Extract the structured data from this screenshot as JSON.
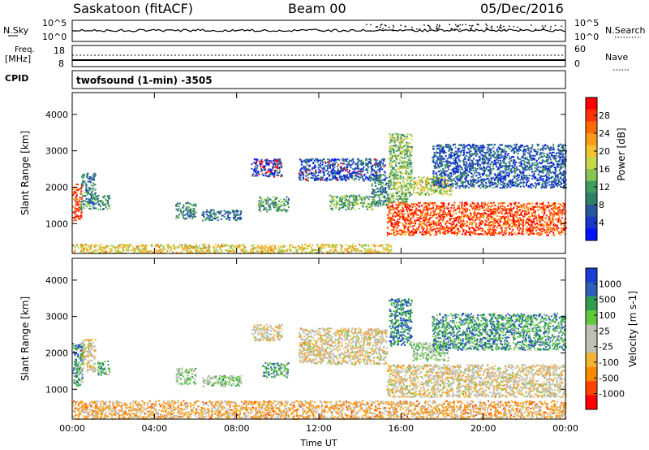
{
  "header": {
    "station": "Saskatoon (fitACF)",
    "beam": "Beam 00",
    "date": "05/Dec/2016"
  },
  "top_panels": {
    "nsky_label": "N.Sky",
    "nsky_ticks": [
      "10^5",
      "10^0"
    ],
    "nsearch_label": "N.Search",
    "nsearch_ticks": [
      "10^5",
      "10^0"
    ],
    "freq_label": "Freq.",
    "freq_unit": "[MHz]",
    "freq_ticks": [
      "18",
      "8"
    ],
    "nave_label": "Nave",
    "nave_ticks": [
      "60",
      "0"
    ],
    "cpid_label": "CPID",
    "cpid_text": "twofsound (1-min) -3505"
  },
  "chart_data": [
    {
      "type": "heatmap",
      "name": "power",
      "ylabel": "Slant Range [km]",
      "ylim": [
        180,
        4600
      ],
      "yticks": [
        "1000",
        "2000",
        "3000",
        "4000"
      ],
      "xlim_hours": [
        0,
        24
      ],
      "colorbar": {
        "label": "Power [dB]",
        "ticks": [
          "28",
          "24",
          "20",
          "16",
          "12",
          "8",
          "4"
        ],
        "colors": [
          "#ff0000",
          "#ff3300",
          "#ff6a00",
          "#ff9a1a",
          "#f2c233",
          "#c7d84a",
          "#8ac554",
          "#3f9e5e",
          "#2f7f6a",
          "#26589c",
          "#1a38c8",
          "#0015ff"
        ]
      },
      "regions": [
        {
          "t": [
            0.0,
            0.45
          ],
          "r": [
            1100,
            2100
          ],
          "level": 0.85
        },
        {
          "t": [
            0.4,
            1.1
          ],
          "r": [
            1400,
            2400
          ],
          "level": 0.3
        },
        {
          "t": [
            1.1,
            1.8
          ],
          "r": [
            1400,
            1800
          ],
          "level": 0.35
        },
        {
          "t": [
            5.0,
            6.0
          ],
          "r": [
            1150,
            1600
          ],
          "level": 0.3
        },
        {
          "t": [
            6.3,
            8.2
          ],
          "r": [
            1100,
            1400
          ],
          "level": 0.25
        },
        {
          "t": [
            8.7,
            10.2
          ],
          "r": [
            2300,
            2800
          ],
          "level": 0.1
        },
        {
          "t": [
            9.0,
            10.5
          ],
          "r": [
            1350,
            1750
          ],
          "level": 0.35
        },
        {
          "t": [
            11.0,
            15.2
          ],
          "r": [
            2200,
            2800
          ],
          "level": 0.15
        },
        {
          "t": [
            12.5,
            14.6
          ],
          "r": [
            1400,
            1800
          ],
          "level": 0.4
        },
        {
          "t": [
            14.5,
            15.4
          ],
          "r": [
            1500,
            2400
          ],
          "level": 0.3
        },
        {
          "t": [
            15.3,
            24.0
          ],
          "r": [
            700,
            1600
          ],
          "level": 0.85
        },
        {
          "t": [
            15.4,
            16.5
          ],
          "r": [
            1600,
            3500
          ],
          "level": 0.45
        },
        {
          "t": [
            16.5,
            18.5
          ],
          "r": [
            1800,
            2300
          ],
          "level": 0.55
        },
        {
          "t": [
            17.5,
            24.0
          ],
          "r": [
            2000,
            3200
          ],
          "level": 0.2
        },
        {
          "t": [
            0.0,
            15.5
          ],
          "r": [
            200,
            450
          ],
          "level": 0.6
        }
      ]
    },
    {
      "type": "heatmap",
      "name": "velocity",
      "ylabel": "Slant Range [km]",
      "xlabel": "Time UT",
      "ylim": [
        180,
        4600
      ],
      "yticks": [
        "1000",
        "2000",
        "3000",
        "4000"
      ],
      "xticks": [
        "00:00",
        "04:00",
        "08:00",
        "12:00",
        "16:00",
        "20:00",
        "00:00"
      ],
      "colorbar": {
        "label": "Velocity [m s-1]",
        "ticks": [
          "1000",
          "500",
          "100",
          "25",
          "-25",
          "-100",
          "-500",
          "-1000"
        ],
        "colors": [
          "#1a3fd2",
          "#2f5fb8",
          "#2f9e52",
          "#5fcb3c",
          "#bebeb6",
          "#c0c0b8",
          "#f2b233",
          "#ff8a00",
          "#ff4400",
          "#ff0000"
        ]
      },
      "regions": [
        {
          "t": [
            0.0,
            0.5
          ],
          "r": [
            1100,
            2300
          ],
          "level": 0.75
        },
        {
          "t": [
            0.4,
            1.1
          ],
          "r": [
            1500,
            2400
          ],
          "level": 0.45
        },
        {
          "t": [
            1.2,
            1.8
          ],
          "r": [
            1400,
            1800
          ],
          "level": 0.7
        },
        {
          "t": [
            5.0,
            6.0
          ],
          "r": [
            1150,
            1600
          ],
          "level": 0.6
        },
        {
          "t": [
            6.3,
            8.2
          ],
          "r": [
            1100,
            1400
          ],
          "level": 0.6
        },
        {
          "t": [
            8.7,
            10.2
          ],
          "r": [
            2350,
            2800
          ],
          "level": 0.45
        },
        {
          "t": [
            9.2,
            10.5
          ],
          "r": [
            1350,
            1750
          ],
          "level": 0.7
        },
        {
          "t": [
            11.0,
            15.3
          ],
          "r": [
            1700,
            2700
          ],
          "level": 0.45
        },
        {
          "t": [
            15.3,
            24.0
          ],
          "r": [
            800,
            1700
          ],
          "level": 0.45
        },
        {
          "t": [
            15.4,
            16.5
          ],
          "r": [
            2200,
            3500
          ],
          "level": 0.8
        },
        {
          "t": [
            16.5,
            18.3
          ],
          "r": [
            1800,
            2300
          ],
          "level": 0.6
        },
        {
          "t": [
            17.5,
            24.0
          ],
          "r": [
            2100,
            3100
          ],
          "level": 0.75
        },
        {
          "t": [
            0.0,
            24.0
          ],
          "r": [
            200,
            700
          ],
          "level": 0.35
        }
      ]
    }
  ]
}
